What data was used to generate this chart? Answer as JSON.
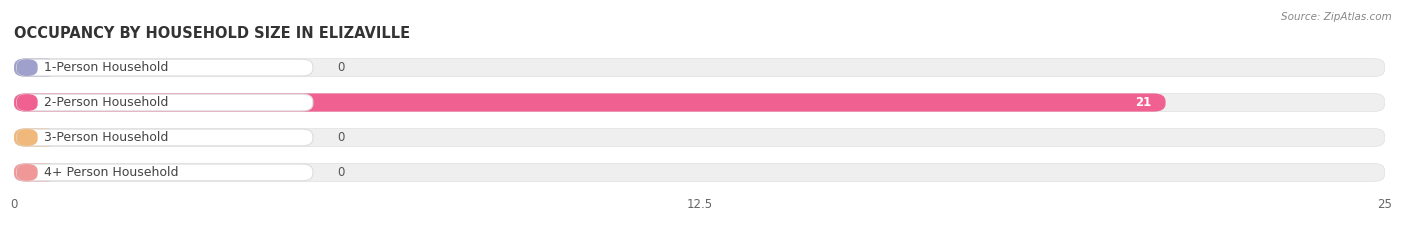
{
  "title": "OCCUPANCY BY HOUSEHOLD SIZE IN ELIZAVILLE",
  "source": "Source: ZipAtlas.com",
  "categories": [
    "1-Person Household",
    "2-Person Household",
    "3-Person Household",
    "4+ Person Household"
  ],
  "values": [
    0,
    21,
    0,
    0
  ],
  "bar_colors": [
    "#a0a0cc",
    "#f06090",
    "#f0b87a",
    "#f09898"
  ],
  "label_bg_colors": [
    "#ffffff",
    "#ffffff",
    "#ffffff",
    "#ffffff"
  ],
  "label_left_colors": [
    "#a0a0cc",
    "#f06090",
    "#f0b87a",
    "#f09898"
  ],
  "xlim": [
    0,
    25
  ],
  "xticks": [
    0,
    12.5,
    25
  ],
  "fig_bg_color": "#ffffff",
  "bar_bg_color": "#efefef",
  "title_fontsize": 10.5,
  "label_fontsize": 9,
  "value_fontsize": 8.5
}
